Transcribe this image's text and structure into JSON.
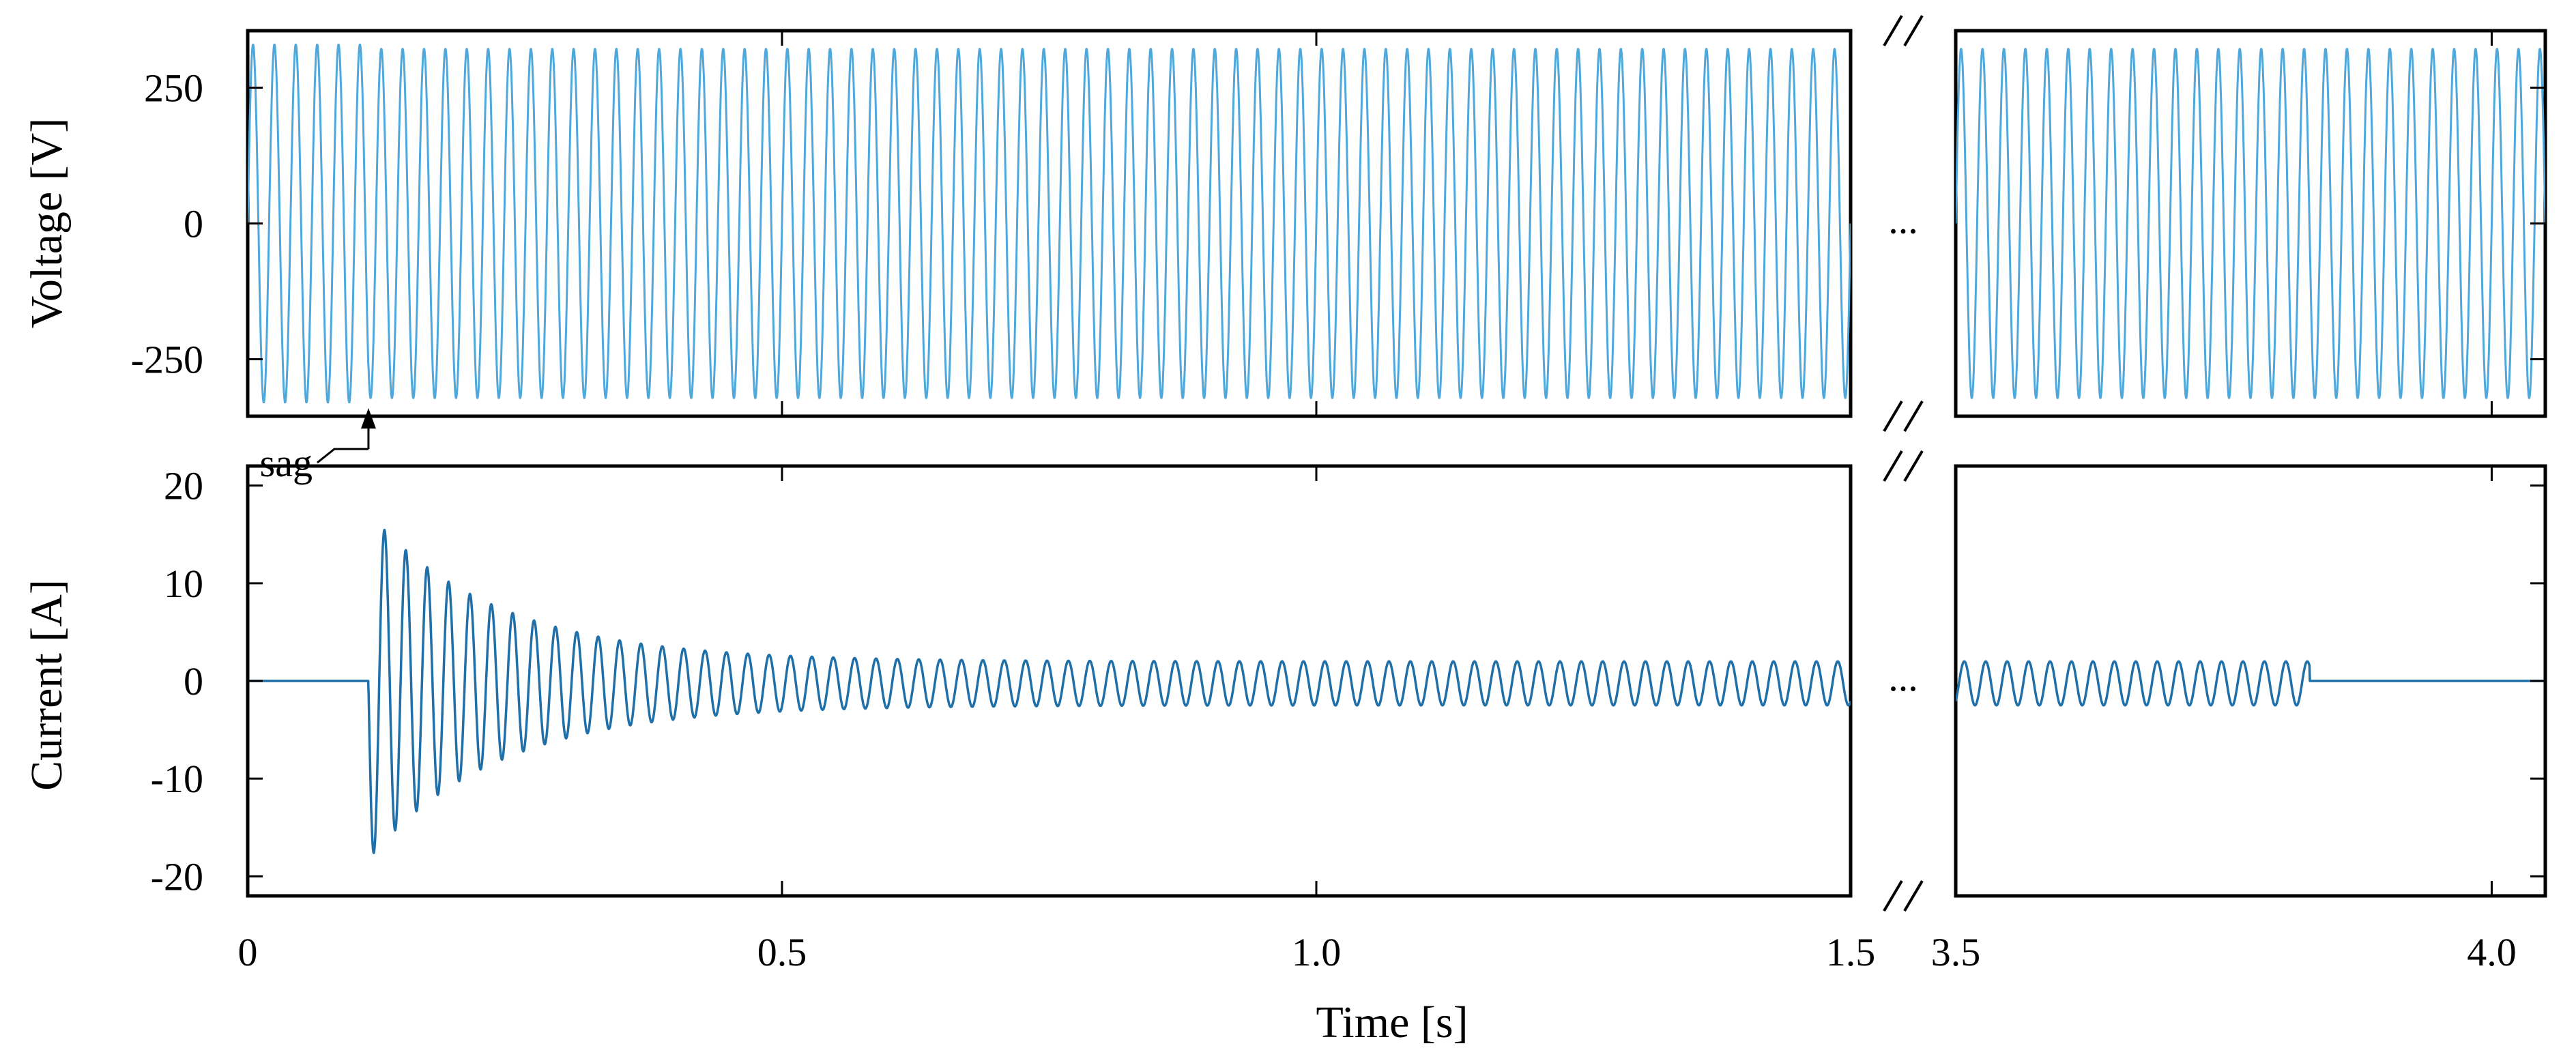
{
  "chart_data": [
    {
      "id": "voltage",
      "type": "line",
      "ylabel": "Voltage [V]",
      "xlabel": "",
      "ylim": [
        -355,
        355
      ],
      "yticks": [
        -250,
        0,
        250
      ],
      "ytick_labels": [
        "-250",
        "0",
        "250"
      ],
      "x_segments": [
        [
          0,
          1.5
        ],
        [
          3.5,
          4.05
        ]
      ],
      "x_break_marker": "//",
      "gap_label": "...",
      "grid": false,
      "legend": "none",
      "color": "#4fa8dc",
      "signal": {
        "waveform": "sine",
        "frequency_hz": 50,
        "amplitude_before_sag_V": 330,
        "amplitude_after_sag_V": 322,
        "sag_time_s": 0.113
      },
      "annotations": [
        {
          "text": "sag",
          "x": 0.113,
          "y": -330
        }
      ]
    },
    {
      "id": "current",
      "type": "line",
      "ylabel": "Current [A]",
      "xlabel": "Time [s]",
      "ylim": [
        -22,
        22
      ],
      "yticks": [
        -20,
        -10,
        0,
        10,
        20
      ],
      "ytick_labels": [
        "-20",
        "-10",
        "0",
        "10",
        "20"
      ],
      "xticks": [
        0,
        0.5,
        1.0,
        1.5,
        3.5,
        4.0
      ],
      "xtick_labels": [
        "0",
        "0.5",
        "1.0",
        "1.5",
        "3.5",
        "4.0"
      ],
      "x_segments": [
        [
          0,
          1.5
        ],
        [
          3.5,
          4.05
        ]
      ],
      "x_break_marker": "//",
      "gap_label": "...",
      "grid": false,
      "legend": "none",
      "color": "#1f6fa8",
      "signal": {
        "waveform": "decaying inrush",
        "frequency_hz": 50,
        "start_s": 0.113,
        "end_s": 3.83,
        "first_positive_peak_A": 18.2,
        "first_negative_peak_A": -20.3,
        "steady_peak_A": 2.0,
        "steady_trough_A": -2.5
      }
    }
  ]
}
